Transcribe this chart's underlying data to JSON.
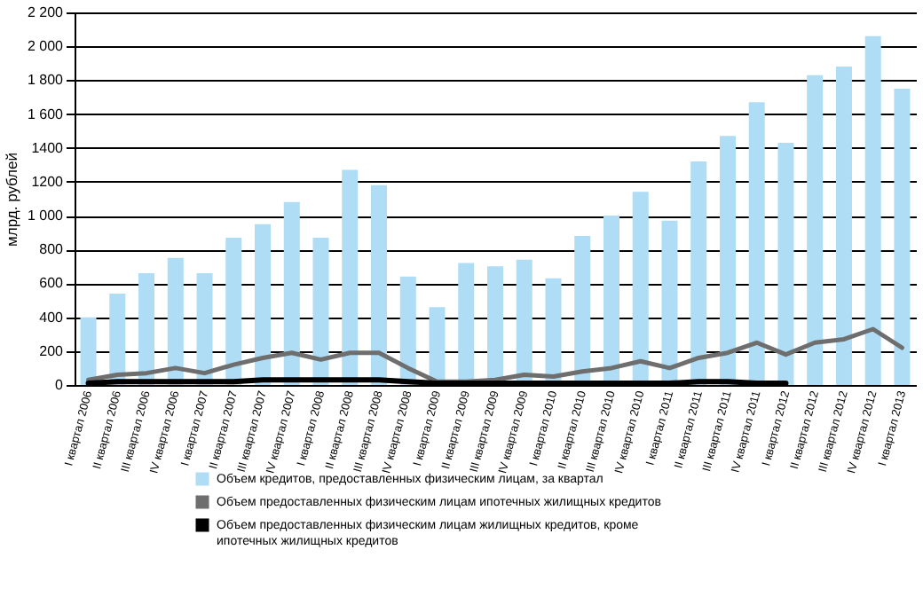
{
  "chart_data": {
    "type": "bar",
    "ylabel": "млрд. рублей",
    "categories": [
      "I квартал 2006",
      "II квартал 2006",
      "III квартал 2006",
      "IV квартал 2006",
      "I квартал 2007",
      "II квартал 2007",
      "III квартал 2007",
      "IV квартал 2007",
      "I квартал 2008",
      "II квартал 2008",
      "III квартал 2008",
      "IV квартал 2008",
      "I квартал 2009",
      "II квартал 2009",
      "III квартал 2009",
      "IV квартал 2009",
      "I квартал 2010",
      "II квартал 2010",
      "III квартал 2010",
      "IV квартал 2010",
      "I квартал 2011",
      "II квартал 2011",
      "III квартал 2011",
      "IV квартал 2011",
      "I квартал 2012",
      "II квартал 2012",
      "III квартал 2012",
      "IV квартал 2012",
      "I квартал 2013"
    ],
    "series": [
      {
        "name": "Объем кредитов, предоставленных физическим лицам, за квартал",
        "color": "#aeddf5",
        "values": [
          400,
          540,
          660,
          750,
          660,
          870,
          950,
          1080,
          870,
          1270,
          1180,
          640,
          460,
          720,
          700,
          740,
          630,
          880,
          1000,
          1140,
          970,
          1320,
          1470,
          1670,
          1430,
          1830,
          1880,
          2060,
          1750
        ]
      },
      {
        "name": "Объем предоставленных физическим лицам ипотечных жилищных кредитов",
        "type": "line",
        "color": "#6e6e6e",
        "values": [
          30,
          60,
          70,
          100,
          70,
          120,
          160,
          190,
          150,
          190,
          190,
          100,
          20,
          20,
          30,
          60,
          50,
          80,
          100,
          140,
          100,
          160,
          190,
          250,
          180,
          250,
          270,
          330,
          220
        ]
      },
      {
        "name": "Объем предоставленных физическим лицам жилищных кредитов, кроме ипотечных жилищных кредитов",
        "type": "line",
        "color": "#000000",
        "values": [
          10,
          20,
          20,
          20,
          20,
          20,
          30,
          30,
          30,
          30,
          30,
          20,
          10,
          10,
          10,
          10,
          10,
          10,
          10,
          10,
          10,
          20,
          20,
          10,
          10,
          null,
          null,
          null,
          null
        ]
      }
    ],
    "ylim": [
      0,
      2200
    ],
    "yticks": [
      0,
      200,
      400,
      600,
      800,
      {
        "value": 1000,
        "label": "1 000"
      },
      1200,
      1400,
      {
        "value": 1600,
        "label": "1 600"
      },
      {
        "value": 1800,
        "label": "1 800"
      },
      {
        "value": 2000,
        "label": "2 000"
      },
      {
        "value": 2200,
        "label": "2 200"
      }
    ],
    "grid": "y",
    "legend": "bottom"
  }
}
